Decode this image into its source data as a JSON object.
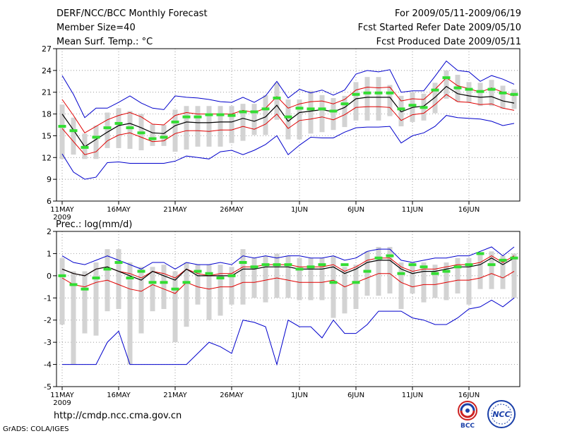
{
  "header": {
    "title": "DERF/NCC/BCC Monthly Forecast",
    "member_size": "Member Size=40",
    "variable": "Mean Surf. Temp.: °C",
    "forecast_period": "For 2009/05/11-2009/06/19",
    "started_refer": "Fcst Started Refer Date 2009/05/10",
    "produced": "Fcst Produced Date 2009/05/11"
  },
  "footer": {
    "url": "http://cmdp.ncc.cma.gov.cn",
    "grads": "GrADS: COLA/IGES",
    "logo_left": "BCC",
    "logo_right": "NCC"
  },
  "colors": {
    "max_min": "#0000cc",
    "spread": "#e00000",
    "mean": "#000000",
    "box": "#d3d3d3",
    "median": "#33dd33",
    "grid": "#777777"
  },
  "chart_data": [
    {
      "type": "line",
      "name": "temperature",
      "ylabel": "Mean Surf. Temp.: °C",
      "ylim": [
        6,
        27
      ],
      "yticks": [
        6,
        9,
        12,
        15,
        18,
        21,
        24,
        27
      ],
      "xtick_labels": [
        {
          "day": 0,
          "label": "11MAY",
          "sub": "2009"
        },
        {
          "day": 5,
          "label": "16MAY"
        },
        {
          "day": 10,
          "label": "21MAY"
        },
        {
          "day": 15,
          "label": "26MAY"
        },
        {
          "day": 21,
          "label": "1JUN"
        },
        {
          "day": 26,
          "label": "6JUN"
        },
        {
          "day": 31,
          "label": "11JUN"
        },
        {
          "day": 36,
          "label": "16JUN"
        }
      ],
      "series": [
        {
          "name": "max",
          "values": [
            23.3,
            20.7,
            17.5,
            18.8,
            18.8,
            19.6,
            20.5,
            19.5,
            18.8,
            18.6,
            20.5,
            20.3,
            20.2,
            20.0,
            19.7,
            19.6,
            20.3,
            19.6,
            20.5,
            22.5,
            20.2,
            21.4,
            20.9,
            21.3,
            20.6,
            21.3,
            23.5,
            24.0,
            23.8,
            24.1,
            21.0,
            21.2,
            21.2,
            23.2,
            25.3,
            24.0,
            23.8,
            22.5,
            23.3,
            22.8,
            22.1
          ]
        },
        {
          "name": "spread_upper",
          "values": [
            20.0,
            17.8,
            15.4,
            16.3,
            17.2,
            17.8,
            18.2,
            17.6,
            16.6,
            16.5,
            17.8,
            18.2,
            18.0,
            18.0,
            18.0,
            18.0,
            18.5,
            18.2,
            18.8,
            20.4,
            18.8,
            19.4,
            19.7,
            19.8,
            19.4,
            20.0,
            21.3,
            21.7,
            21.6,
            21.7,
            19.8,
            20.1,
            20.0,
            21.4,
            23.0,
            21.9,
            21.5,
            21.0,
            21.6,
            21.0,
            20.5
          ]
        },
        {
          "name": "mean",
          "values": [
            18.0,
            15.8,
            13.5,
            14.5,
            15.5,
            16.4,
            16.7,
            16.1,
            15.4,
            15.3,
            16.4,
            16.9,
            16.8,
            16.8,
            16.9,
            16.9,
            17.4,
            17.0,
            17.6,
            19.2,
            17.0,
            18.2,
            18.4,
            18.6,
            18.3,
            18.9,
            20.1,
            20.3,
            20.3,
            20.3,
            18.3,
            18.9,
            19.1,
            20.3,
            21.8,
            20.8,
            20.5,
            20.3,
            20.4,
            19.8,
            19.5
          ]
        },
        {
          "name": "spread_lower",
          "values": [
            16.0,
            14.2,
            12.4,
            12.8,
            14.3,
            15.1,
            15.4,
            14.8,
            14.2,
            14.3,
            15.3,
            15.7,
            15.7,
            15.6,
            15.8,
            15.8,
            16.3,
            15.9,
            16.6,
            18.0,
            16.0,
            17.1,
            17.3,
            17.6,
            17.2,
            17.9,
            18.9,
            19.0,
            19.0,
            18.9,
            17.1,
            17.9,
            18.1,
            19.3,
            20.7,
            19.7,
            19.6,
            19.3,
            19.4,
            18.8,
            18.5
          ]
        },
        {
          "name": "min",
          "values": [
            12.5,
            10.0,
            9.0,
            9.3,
            11.3,
            11.4,
            11.2,
            11.2,
            11.2,
            11.2,
            11.5,
            12.2,
            12.0,
            11.8,
            12.8,
            13.0,
            12.4,
            13.0,
            13.8,
            15.0,
            12.4,
            13.7,
            14.8,
            14.7,
            14.7,
            15.5,
            16.1,
            16.2,
            16.2,
            16.3,
            14.0,
            15.0,
            15.4,
            16.3,
            17.8,
            17.5,
            17.4,
            17.3,
            17.0,
            16.4,
            16.7
          ]
        },
        {
          "name": "median",
          "values": [
            16.3,
            15.7,
            13.4,
            14.8,
            16.1,
            16.7,
            16.1,
            15.4,
            14.6,
            14.8,
            16.9,
            17.6,
            17.6,
            17.9,
            17.9,
            17.8,
            18.3,
            18.3,
            18.7,
            20.2,
            17.6,
            18.8,
            18.7,
            18.7,
            18.4,
            19.4,
            20.7,
            20.9,
            20.9,
            20.9,
            18.7,
            19.2,
            18.9,
            21.3,
            23.0,
            21.6,
            21.4,
            21.1,
            21.4,
            20.9,
            20.7
          ]
        },
        {
          "name": "box_top",
          "values": [
            19.3,
            17.5,
            15.3,
            16.4,
            18.2,
            18.8,
            18.4,
            18.0,
            16.6,
            16.5,
            18.6,
            19.1,
            19.1,
            19.1,
            19.1,
            19.1,
            19.4,
            19.4,
            20.6,
            22.3,
            20.0,
            20.0,
            21.2,
            20.6,
            20.2,
            20.5,
            22.4,
            23.1,
            23.1,
            22.0,
            20.5,
            21.0,
            20.8,
            22.3,
            24.0,
            23.4,
            22.4,
            22.3,
            22.7,
            21.9,
            21.4
          ]
        },
        {
          "name": "box_bottom",
          "values": [
            11.8,
            12.4,
            11.8,
            11.8,
            13.3,
            13.3,
            13.2,
            13.0,
            13.6,
            13.6,
            12.8,
            13.1,
            13.5,
            13.5,
            13.5,
            14.0,
            14.3,
            15.1,
            15.1,
            17.2,
            14.5,
            14.5,
            15.3,
            15.5,
            15.8,
            16.2,
            17.1,
            17.1,
            17.1,
            17.7,
            16.3,
            16.9,
            17.1,
            18.1,
            20.1,
            19.7,
            19.6,
            19.1,
            19.1,
            18.7,
            18.7
          ]
        }
      ]
    },
    {
      "type": "line",
      "name": "precipitation",
      "ylabel": "Prec.: log(mm/d)",
      "ylim": [
        -5,
        2
      ],
      "yticks": [
        -5,
        -4,
        -3,
        -2,
        -1,
        0,
        1,
        2
      ],
      "xtick_labels": [
        {
          "day": 0,
          "label": "11MAY",
          "sub": "2009"
        },
        {
          "day": 5,
          "label": "16MAY"
        },
        {
          "day": 10,
          "label": "21MAY"
        },
        {
          "day": 15,
          "label": "26MAY"
        },
        {
          "day": 21,
          "label": "1JUN"
        },
        {
          "day": 26,
          "label": "6JUN"
        },
        {
          "day": 31,
          "label": "11JUN"
        },
        {
          "day": 36,
          "label": "16JUN"
        }
      ],
      "series": [
        {
          "name": "max",
          "values": [
            0.9,
            0.6,
            0.5,
            0.7,
            0.9,
            0.7,
            0.5,
            0.3,
            0.6,
            0.6,
            0.3,
            0.6,
            0.5,
            0.5,
            0.6,
            0.5,
            0.9,
            0.8,
            0.9,
            0.8,
            0.9,
            0.9,
            0.8,
            0.8,
            0.9,
            0.7,
            0.8,
            1.1,
            1.2,
            1.2,
            0.7,
            0.6,
            0.7,
            0.8,
            0.8,
            0.9,
            0.9,
            1.1,
            1.3,
            0.9,
            1.3
          ]
        },
        {
          "name": "spread_upper",
          "values": [
            0.3,
            0.1,
            0.0,
            0.3,
            0.4,
            0.2,
            0.1,
            -0.1,
            0.2,
            0.1,
            -0.1,
            0.3,
            0.1,
            0.0,
            0.1,
            0.1,
            0.4,
            0.4,
            0.5,
            0.5,
            0.5,
            0.4,
            0.4,
            0.4,
            0.5,
            0.2,
            0.4,
            0.7,
            0.8,
            0.8,
            0.4,
            0.2,
            0.3,
            0.3,
            0.4,
            0.5,
            0.5,
            0.6,
            0.9,
            0.6,
            0.9
          ]
        },
        {
          "name": "mean",
          "values": [
            0.3,
            0.1,
            0.0,
            0.3,
            0.4,
            0.2,
            0.0,
            -0.2,
            0.2,
            0.0,
            -0.2,
            0.3,
            0.0,
            0.0,
            0.0,
            0.0,
            0.3,
            0.3,
            0.4,
            0.4,
            0.4,
            0.3,
            0.3,
            0.3,
            0.4,
            0.1,
            0.3,
            0.6,
            0.7,
            0.7,
            0.3,
            0.1,
            0.2,
            0.2,
            0.3,
            0.4,
            0.4,
            0.5,
            0.8,
            0.5,
            0.8
          ]
        },
        {
          "name": "spread_lower",
          "values": [
            -0.1,
            -0.4,
            -0.5,
            -0.3,
            -0.2,
            -0.4,
            -0.6,
            -0.7,
            -0.4,
            -0.6,
            -0.8,
            -0.3,
            -0.5,
            -0.6,
            -0.5,
            -0.5,
            -0.3,
            -0.3,
            -0.2,
            -0.1,
            -0.2,
            -0.3,
            -0.3,
            -0.3,
            -0.2,
            -0.5,
            -0.3,
            -0.1,
            0.1,
            0.1,
            -0.3,
            -0.5,
            -0.4,
            -0.4,
            -0.3,
            -0.2,
            -0.2,
            -0.1,
            0.1,
            -0.1,
            0.2
          ]
        },
        {
          "name": "min",
          "values": [
            -4.0,
            -4.0,
            -4.0,
            -4.0,
            -3.0,
            -2.5,
            -4.0,
            -4.0,
            -4.0,
            -4.0,
            -4.0,
            -4.0,
            -3.5,
            -3.0,
            -3.2,
            -3.5,
            -2.0,
            -2.1,
            -2.3,
            -4.0,
            -2.0,
            -2.3,
            -2.3,
            -2.8,
            -2.0,
            -2.6,
            -2.6,
            -2.2,
            -1.6,
            -1.6,
            -1.6,
            -1.9,
            -2.0,
            -2.2,
            -2.2,
            -1.9,
            -1.5,
            -1.4,
            -1.1,
            -1.4,
            -1.0
          ]
        },
        {
          "name": "median",
          "values": [
            0.0,
            -0.4,
            -0.6,
            -0.1,
            0.3,
            0.6,
            -0.1,
            0.2,
            -0.3,
            -0.3,
            -0.6,
            -0.3,
            0.2,
            0.1,
            -0.1,
            0.0,
            0.6,
            0.4,
            0.5,
            0.5,
            0.5,
            0.3,
            0.4,
            0.5,
            -0.3,
            0.5,
            -0.3,
            0.2,
            0.8,
            0.9,
            0.1,
            0.5,
            0.4,
            0.1,
            0.2,
            0.4,
            0.5,
            1.0,
            0.5,
            0.7,
            0.8
          ]
        },
        {
          "name": "box_top",
          "values": [
            0.8,
            0.2,
            0.2,
            0.6,
            1.2,
            1.2,
            0.6,
            0.4,
            0.4,
            0.5,
            0.2,
            0.6,
            0.5,
            0.5,
            0.5,
            0.4,
            1.2,
            0.8,
            0.9,
            1.0,
            0.9,
            0.8,
            0.8,
            0.8,
            0.9,
            0.4,
            0.5,
            1.1,
            1.3,
            1.3,
            0.6,
            0.6,
            0.6,
            0.5,
            0.6,
            0.8,
            0.8,
            1.0,
            1.1,
            0.9,
            1.0
          ]
        },
        {
          "name": "box_bottom",
          "values": [
            -2.2,
            -4.0,
            -2.6,
            -2.7,
            -1.6,
            -1.5,
            -4.0,
            -2.6,
            -1.6,
            -1.5,
            -3.0,
            -2.3,
            -1.3,
            -2.0,
            -1.8,
            -1.3,
            -1.3,
            -1.0,
            -1.2,
            -1.0,
            -1.0,
            -1.1,
            -1.1,
            -1.1,
            -1.9,
            -1.7,
            -1.5,
            -0.9,
            -0.9,
            -0.8,
            -1.5,
            -0.8,
            -1.2,
            -1.0,
            -1.1,
            -0.8,
            -1.3,
            -0.6,
            -0.6,
            -0.6,
            -1.0
          ]
        }
      ]
    }
  ]
}
